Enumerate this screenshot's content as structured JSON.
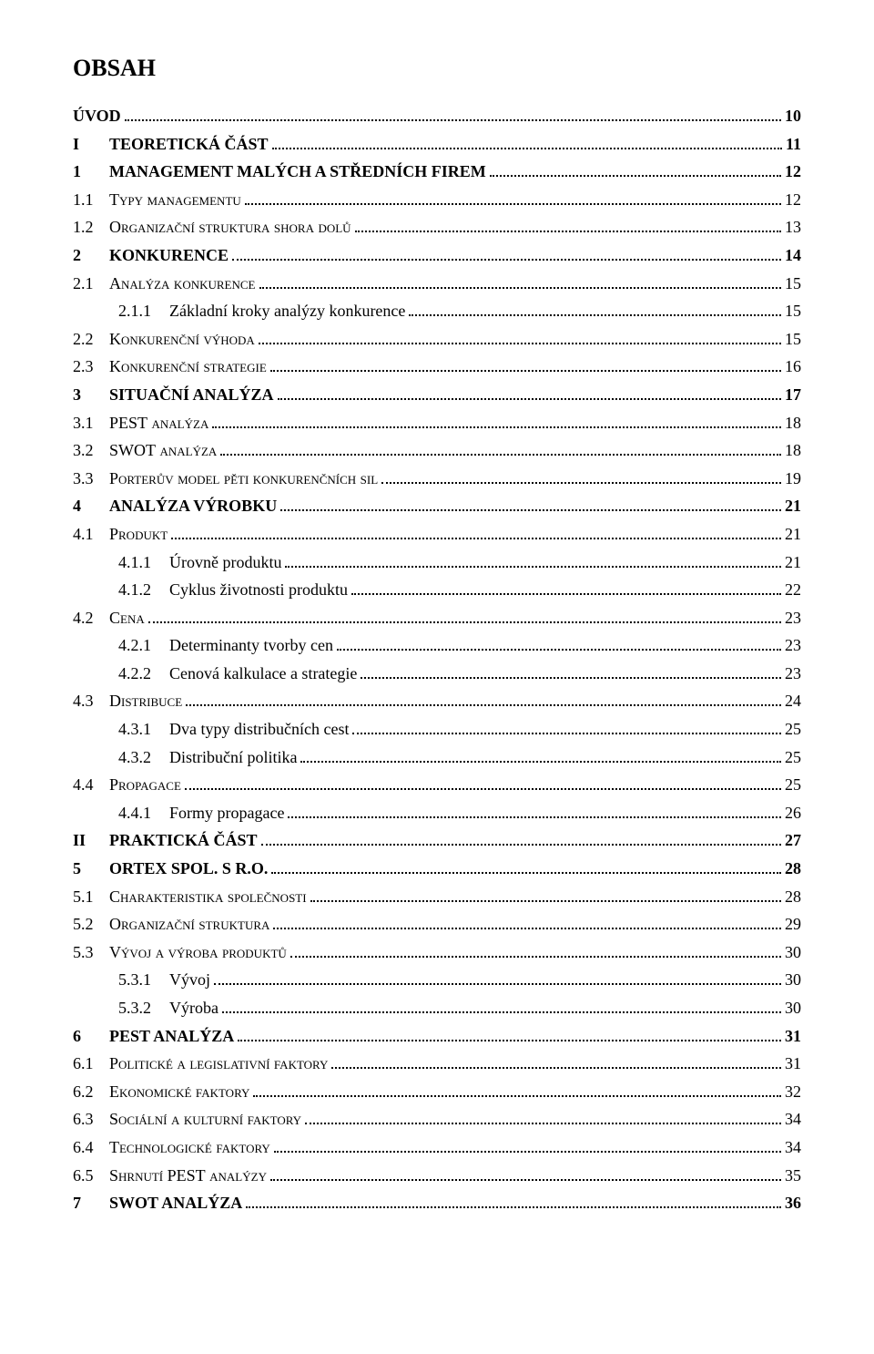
{
  "title": "OBSAH",
  "entries": [
    {
      "level": 0,
      "bold": true,
      "num": "",
      "text": "ÚVOD",
      "page": "10"
    },
    {
      "level": 0,
      "bold": true,
      "num": "I",
      "text": "TEORETICKÁ ČÁST",
      "page": "11"
    },
    {
      "level": 0,
      "bold": true,
      "num": "1",
      "text": "MANAGEMENT MALÝCH A STŘEDNÍCH FIREM",
      "page": "12"
    },
    {
      "level": 1,
      "sc": true,
      "num": "1.1",
      "text": "Typy managementu",
      "page": "12"
    },
    {
      "level": 1,
      "sc": true,
      "num": "1.2",
      "text": "Organizační struktura shora dolů",
      "page": "13"
    },
    {
      "level": 0,
      "bold": true,
      "num": "2",
      "text": "KONKURENCE",
      "page": "14"
    },
    {
      "level": 1,
      "sc": true,
      "num": "2.1",
      "text": "Analýza konkurence",
      "page": "15"
    },
    {
      "level": 2,
      "num": "2.1.1",
      "text": "Základní kroky analýzy konkurence",
      "page": "15"
    },
    {
      "level": 1,
      "sc": true,
      "num": "2.2",
      "text": "Konkurenční výhoda",
      "page": "15"
    },
    {
      "level": 1,
      "sc": true,
      "num": "2.3",
      "text": "Konkurenční strategie",
      "page": "16"
    },
    {
      "level": 0,
      "bold": true,
      "num": "3",
      "text": "SITUAČNÍ ANALÝZA",
      "page": "17"
    },
    {
      "level": 1,
      "sc": true,
      "num": "3.1",
      "text": "PEST analýza",
      "page": "18"
    },
    {
      "level": 1,
      "sc": true,
      "num": "3.2",
      "text": "SWOT analýza",
      "page": "18"
    },
    {
      "level": 1,
      "sc": true,
      "num": "3.3",
      "text": "Porterův model pěti konkurenčních sil",
      "page": "19"
    },
    {
      "level": 0,
      "bold": true,
      "num": "4",
      "text": "ANALÝZA VÝROBKU",
      "page": "21"
    },
    {
      "level": 1,
      "sc": true,
      "num": "4.1",
      "text": "Produkt",
      "page": "21"
    },
    {
      "level": 2,
      "num": "4.1.1",
      "text": "Úrovně produktu",
      "page": "21"
    },
    {
      "level": 2,
      "num": "4.1.2",
      "text": "Cyklus životnosti produktu",
      "page": "22"
    },
    {
      "level": 1,
      "sc": true,
      "num": "4.2",
      "text": "Cena",
      "page": "23"
    },
    {
      "level": 2,
      "num": "4.2.1",
      "text": "Determinanty tvorby cen",
      "page": "23"
    },
    {
      "level": 2,
      "num": "4.2.2",
      "text": "Cenová kalkulace a strategie",
      "page": "23"
    },
    {
      "level": 1,
      "sc": true,
      "num": "4.3",
      "text": "Distribuce",
      "page": "24"
    },
    {
      "level": 2,
      "num": "4.3.1",
      "text": "Dva typy distribučních cest",
      "page": "25"
    },
    {
      "level": 2,
      "num": "4.3.2",
      "text": "Distribuční politika",
      "page": "25"
    },
    {
      "level": 1,
      "sc": true,
      "num": "4.4",
      "text": "Propagace",
      "page": "25"
    },
    {
      "level": 2,
      "num": "4.4.1",
      "text": "Formy propagace",
      "page": "26"
    },
    {
      "level": 0,
      "bold": true,
      "num": "II",
      "text": "PRAKTICKÁ ČÁST",
      "page": "27"
    },
    {
      "level": 0,
      "bold": true,
      "num": "5",
      "text": "ORTEX SPOL. S R.O.",
      "page": "28"
    },
    {
      "level": 1,
      "sc": true,
      "num": "5.1",
      "text": "Charakteristika společnosti",
      "page": "28"
    },
    {
      "level": 1,
      "sc": true,
      "num": "5.2",
      "text": "Organizační struktura",
      "page": "29"
    },
    {
      "level": 1,
      "sc": true,
      "num": "5.3",
      "text": "Vývoj a výroba produktů",
      "page": "30"
    },
    {
      "level": 2,
      "num": "5.3.1",
      "text": "Vývoj",
      "page": "30"
    },
    {
      "level": 2,
      "num": "5.3.2",
      "text": "Výroba",
      "page": "30"
    },
    {
      "level": 0,
      "bold": true,
      "num": "6",
      "text": "PEST ANALÝZA",
      "page": "31"
    },
    {
      "level": 1,
      "sc": true,
      "num": "6.1",
      "text": "Politické a legislativní faktory",
      "page": "31"
    },
    {
      "level": 1,
      "sc": true,
      "num": "6.2",
      "text": "Ekonomické faktory",
      "page": "32"
    },
    {
      "level": 1,
      "sc": true,
      "num": "6.3",
      "text": "Sociální a kulturní faktory",
      "page": "34"
    },
    {
      "level": 1,
      "sc": true,
      "num": "6.4",
      "text": "Technologické faktory",
      "page": "34"
    },
    {
      "level": 1,
      "sc": true,
      "num": "6.5",
      "text": "Shrnutí PEST analýzy",
      "page": "35"
    },
    {
      "level": 0,
      "bold": true,
      "num": "7",
      "text": "SWOT ANALÝZA",
      "page": "36"
    }
  ]
}
